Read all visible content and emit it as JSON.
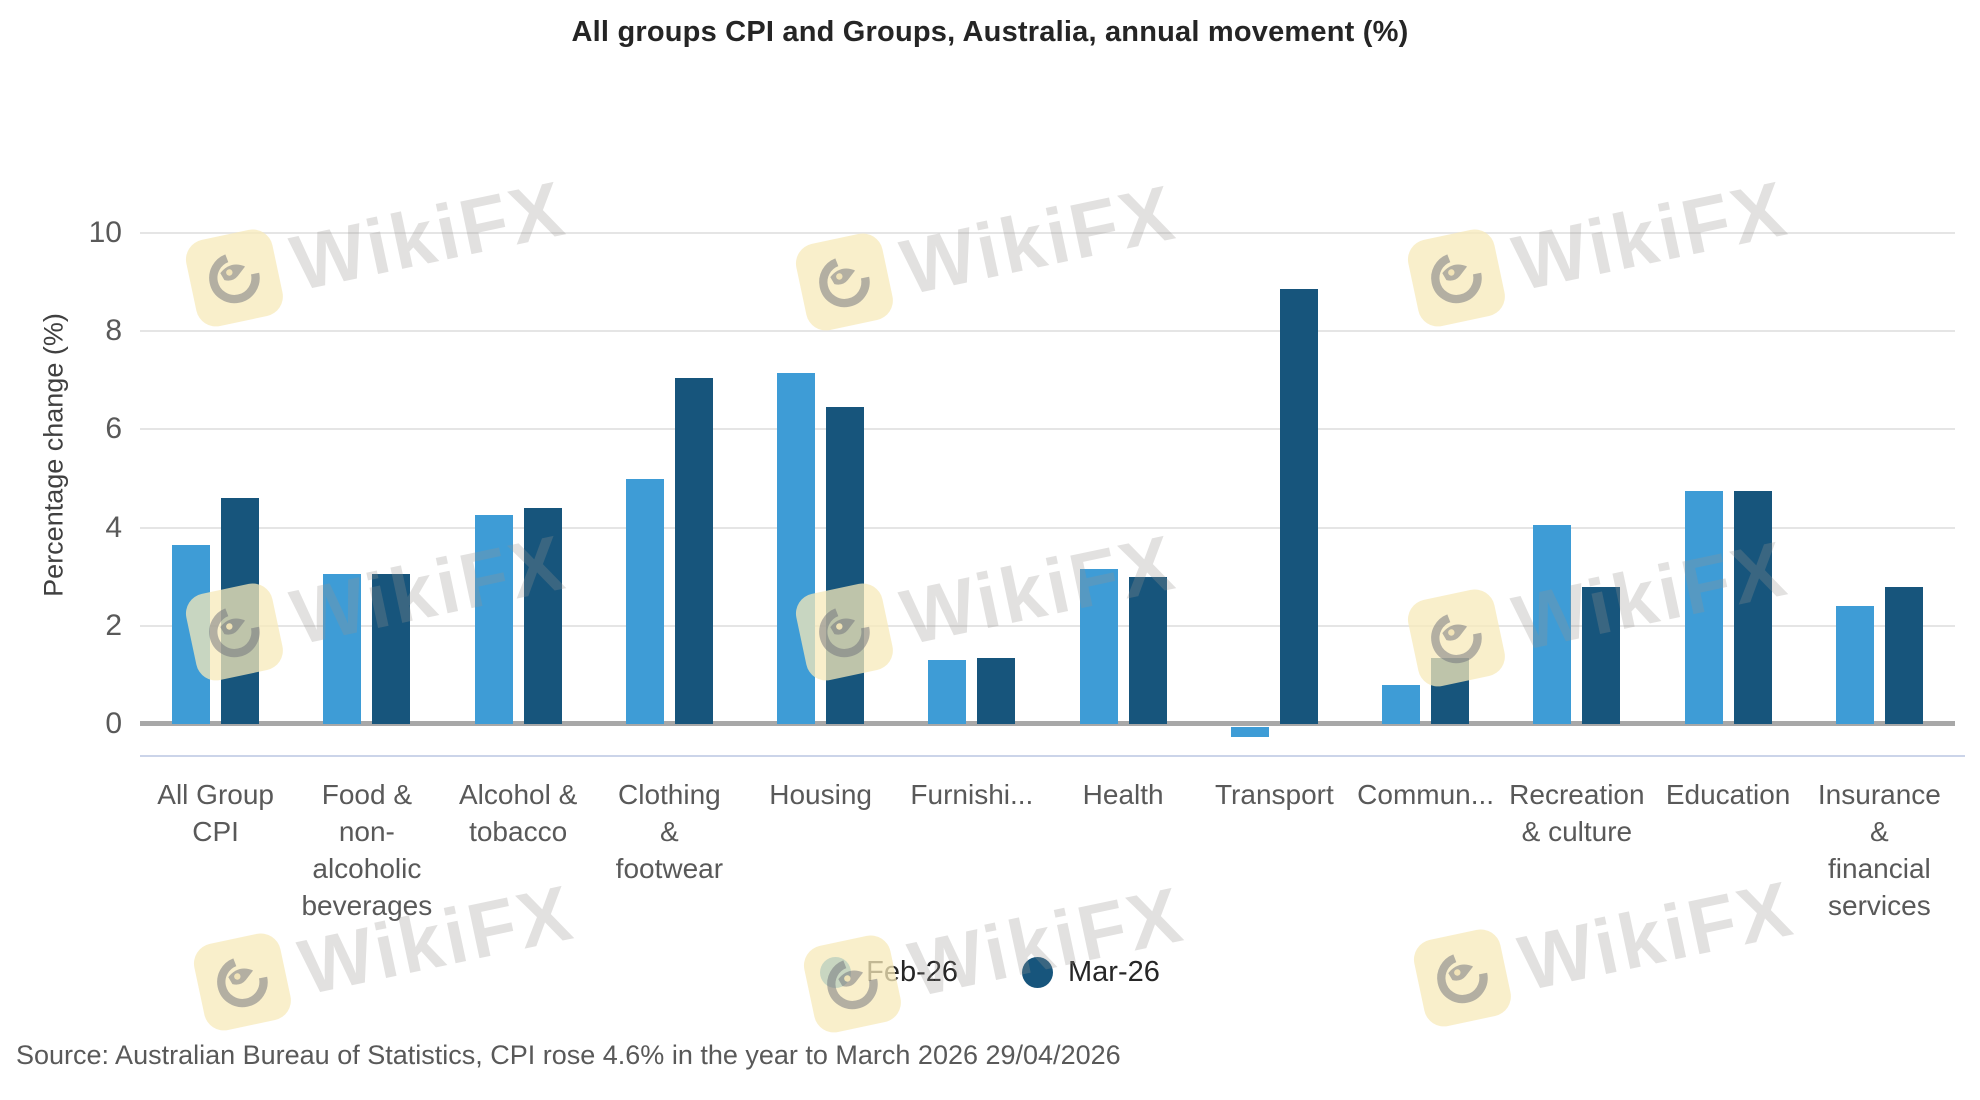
{
  "title": "All groups CPI and Groups, Australia, annual movement (%)",
  "source_note": "Source: Australian Bureau of Statistics, CPI rose 4.6% in the year to March 2026 29/04/2026",
  "watermark": {
    "text": "WikiFX"
  },
  "legend": [
    {
      "label": "Feb-26",
      "color": "#3e9cd6"
    },
    {
      "label": "Mar-26",
      "color": "#17557c"
    }
  ],
  "colors": {
    "feb_series": "#3e9cd6",
    "mar_series": "#17557c",
    "gridline": "#e5e5e5",
    "zero_line": "#a8a8a8",
    "axis_underline": "#cbd4e9",
    "tick_label": "#595959",
    "title_text": "#252525",
    "watermark_badge": "#f7e9b9"
  },
  "chart_data": {
    "type": "bar",
    "title": "All groups CPI and Groups, Australia, annual movement (%)",
    "xlabel": "",
    "ylabel": "Percentage change (%)",
    "ylim": [
      0,
      10
    ],
    "yticks": [
      0,
      2,
      4,
      6,
      8,
      10
    ],
    "grid": true,
    "legend_position": "bottom",
    "categories": [
      {
        "name": "All Group CPI",
        "lines": [
          "All Group",
          "CPI"
        ]
      },
      {
        "name": "Food & non-alcoholic beverages",
        "lines": [
          "Food &",
          "non-",
          "alcoholic",
          "beverages"
        ]
      },
      {
        "name": "Alcohol & tobacco",
        "lines": [
          "Alcohol &",
          "tobacco"
        ]
      },
      {
        "name": "Clothing & footwear",
        "lines": [
          "Clothing",
          "&",
          "footwear"
        ]
      },
      {
        "name": "Housing",
        "lines": [
          "Housing"
        ]
      },
      {
        "name": "Furnishings",
        "lines": [
          "Furnishi..."
        ]
      },
      {
        "name": "Health",
        "lines": [
          "Health"
        ]
      },
      {
        "name": "Transport",
        "lines": [
          "Transport"
        ]
      },
      {
        "name": "Communication",
        "lines": [
          "Commun..."
        ]
      },
      {
        "name": "Recreation & culture",
        "lines": [
          "Recreation",
          "& culture"
        ]
      },
      {
        "name": "Education",
        "lines": [
          "Education"
        ]
      },
      {
        "name": "Insurance & financial services",
        "lines": [
          "Insurance",
          "&",
          "financial",
          "services"
        ]
      }
    ],
    "series": [
      {
        "name": "Feb-26",
        "color": "#3e9cd6",
        "values": [
          3.65,
          3.05,
          4.25,
          5.0,
          7.15,
          1.3,
          3.15,
          -0.2,
          0.8,
          4.05,
          4.75,
          2.4
        ]
      },
      {
        "name": "Mar-26",
        "color": "#17557c",
        "values": [
          4.6,
          3.05,
          4.4,
          7.05,
          6.45,
          1.35,
          3.0,
          8.85,
          1.35,
          2.8,
          4.75,
          2.8
        ]
      }
    ]
  }
}
